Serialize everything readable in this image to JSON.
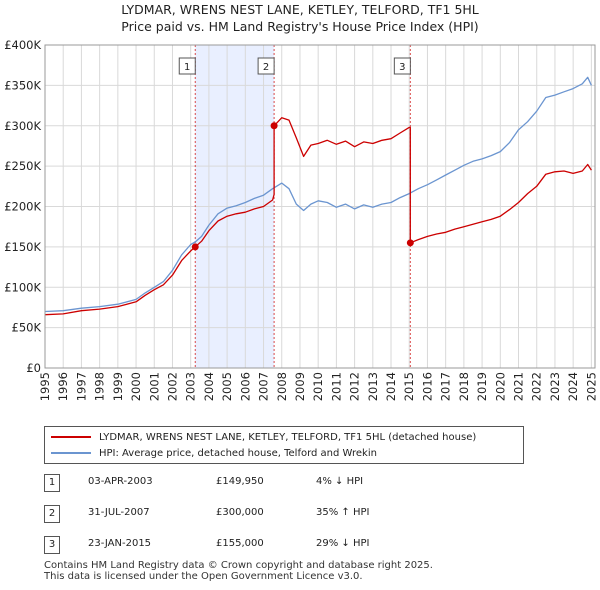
{
  "chart_data": {
    "type": "line",
    "title": "LYDMAR, WRENS NEST LANE, KETLEY, TELFORD, TF1 5HL",
    "subtitle": "Price paid vs. HM Land Registry's House Price Index (HPI)",
    "xlabel": "",
    "ylabel": "",
    "xlim": [
      1995,
      2025.2
    ],
    "ylim": [
      0,
      400000
    ],
    "y_ticks": [
      0,
      50000,
      100000,
      150000,
      200000,
      250000,
      300000,
      350000,
      400000
    ],
    "y_tick_labels": [
      "£0",
      "£50K",
      "£100K",
      "£150K",
      "£200K",
      "£250K",
      "£300K",
      "£350K",
      "£400K"
    ],
    "x_tick_labels": [
      "1995",
      "1996",
      "1997",
      "1998",
      "1999",
      "2000",
      "2001",
      "2002",
      "2003",
      "2004",
      "2005",
      "2006",
      "2007",
      "2008",
      "2009",
      "2010",
      "2011",
      "2012",
      "2013",
      "2014",
      "2015",
      "2016",
      "2017",
      "2018",
      "2019",
      "2020",
      "2021",
      "2022",
      "2023",
      "2024",
      "2025"
    ],
    "grid": true,
    "series": [
      {
        "name": "LYDMAR, WRENS NEST LANE, KETLEY, TELFORD, TF1 5HL (detached house)",
        "color": "#cc0000",
        "x": [
          1995.0,
          1996.0,
          1997.0,
          1998.0,
          1999.0,
          2000.0,
          2000.5,
          2001.0,
          2001.5,
          2002.0,
          2002.5,
          2003.0,
          2003.25,
          2003.6,
          2004.0,
          2004.5,
          2005.0,
          2005.5,
          2006.0,
          2006.5,
          2007.0,
          2007.5,
          2007.58,
          2007.58,
          2008.0,
          2008.4,
          2008.8,
          2009.2,
          2009.6,
          2010.0,
          2010.5,
          2011.0,
          2011.5,
          2012.0,
          2012.5,
          2013.0,
          2013.5,
          2014.0,
          2014.5,
          2015.0,
          2015.06,
          2015.06,
          2015.5,
          2016.0,
          2016.5,
          2017.0,
          2017.5,
          2018.0,
          2018.5,
          2019.0,
          2019.5,
          2020.0,
          2020.5,
          2021.0,
          2021.5,
          2022.0,
          2022.5,
          2023.0,
          2023.5,
          2024.0,
          2024.5,
          2024.8,
          2025.0
        ],
        "y": [
          66000,
          67000,
          71000,
          73000,
          76000,
          82000,
          90000,
          97000,
          103000,
          115000,
          133000,
          145000,
          149950,
          157000,
          170000,
          182000,
          188000,
          191000,
          193000,
          197000,
          200000,
          208000,
          215000,
          300000,
          310000,
          307000,
          285000,
          262000,
          276000,
          278000,
          282000,
          277000,
          281000,
          274000,
          280000,
          278000,
          282000,
          284000,
          291000,
          298000,
          298000,
          155000,
          159000,
          163000,
          166000,
          168000,
          172000,
          175000,
          178000,
          181000,
          184000,
          188000,
          196000,
          205000,
          216000,
          225000,
          240000,
          243000,
          244000,
          241000,
          244000,
          252000,
          245000
        ]
      },
      {
        "name": "HPI: Average price, detached house, Telford and Wrekin",
        "color": "#6b95d0",
        "x": [
          1995.0,
          1996.0,
          1997.0,
          1998.0,
          1999.0,
          2000.0,
          2000.5,
          2001.0,
          2001.5,
          2002.0,
          2002.5,
          2003.0,
          2003.25,
          2003.6,
          2004.0,
          2004.5,
          2005.0,
          2005.5,
          2006.0,
          2006.5,
          2007.0,
          2007.5,
          2008.0,
          2008.4,
          2008.8,
          2009.2,
          2009.6,
          2010.0,
          2010.5,
          2011.0,
          2011.5,
          2012.0,
          2012.5,
          2013.0,
          2013.5,
          2014.0,
          2014.5,
          2015.0,
          2015.5,
          2016.0,
          2016.5,
          2017.0,
          2017.5,
          2018.0,
          2018.5,
          2019.0,
          2019.5,
          2020.0,
          2020.5,
          2021.0,
          2021.5,
          2022.0,
          2022.5,
          2023.0,
          2023.5,
          2024.0,
          2024.5,
          2024.8,
          2025.0
        ],
        "y": [
          70000,
          71000,
          74000,
          76000,
          79000,
          85000,
          93000,
          100000,
          107000,
          121000,
          140000,
          153000,
          156000,
          163000,
          177000,
          191000,
          198000,
          201000,
          205000,
          210000,
          214000,
          222000,
          229000,
          222000,
          203000,
          195000,
          203000,
          207000,
          205000,
          199000,
          203000,
          197000,
          202000,
          199000,
          203000,
          205000,
          211000,
          216000,
          222000,
          227000,
          233000,
          239000,
          245000,
          251000,
          256000,
          259000,
          263000,
          268000,
          279000,
          295000,
          305000,
          318000,
          335000,
          338000,
          342000,
          346000,
          352000,
          360000,
          350000
        ]
      }
    ],
    "markers": [
      {
        "label": "1",
        "x": 2003.25,
        "y": 149950
      },
      {
        "label": "2",
        "x": 2007.58,
        "y": 300000
      },
      {
        "label": "3",
        "x": 2015.06,
        "y": 155000
      }
    ],
    "band_color": "#e9efff"
  },
  "legend": {
    "property": "LYDMAR, WRENS NEST LANE, KETLEY, TELFORD, TF1 5HL (detached house)",
    "hpi": "HPI: Average price, detached house, Telford and Wrekin"
  },
  "sales": [
    {
      "num": "1",
      "date": "03-APR-2003",
      "price": "£149,950",
      "hpi": "4% ↓ HPI"
    },
    {
      "num": "2",
      "date": "31-JUL-2007",
      "price": "£300,000",
      "hpi": "35% ↑ HPI"
    },
    {
      "num": "3",
      "date": "23-JAN-2015",
      "price": "£155,000",
      "hpi": "29% ↓ HPI"
    }
  ],
  "footer": {
    "line1": "Contains HM Land Registry data © Crown copyright and database right 2025.",
    "line2": "This data is licensed under the Open Government Licence v3.0."
  }
}
